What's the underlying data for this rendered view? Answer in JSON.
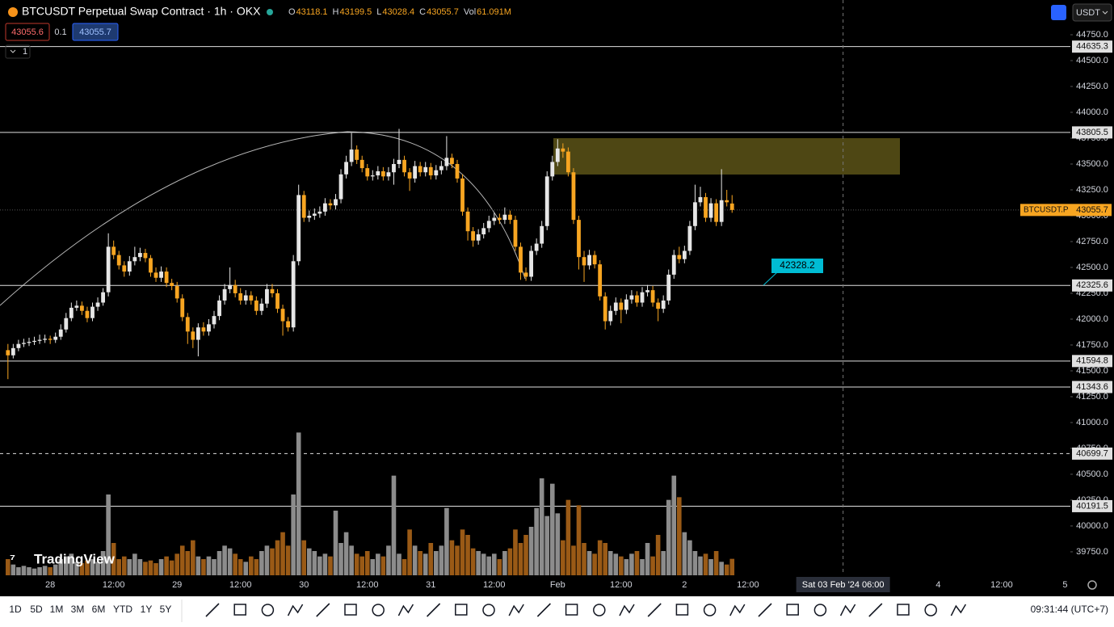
{
  "header": {
    "symbol": "BTCUSDT Perpetual Swap Contract · 1h · OKX",
    "legend_keys": [
      "O",
      "H",
      "L",
      "C",
      "Vol"
    ],
    "volume_text": "61.091M",
    "bid": 43055.6,
    "spread": 0.1,
    "ask": 43055.7,
    "panes": 1,
    "currency": "USDT"
  },
  "watermark": "TradingView",
  "toolbar": {
    "periods": [
      "1D",
      "5D",
      "1M",
      "3M",
      "6M",
      "YTD",
      "1Y",
      "5Y"
    ],
    "clock": "09:31:44 (UTC+7)"
  },
  "chart_data": {
    "type": "candlestick",
    "x": [
      -8,
      -7,
      -6,
      -5,
      -4,
      -3,
      -2,
      -1,
      0,
      1,
      2,
      3,
      4,
      5,
      6,
      7,
      8,
      9,
      10,
      11,
      12,
      13,
      14,
      15,
      16,
      17,
      18,
      19,
      20,
      21,
      22,
      23,
      24,
      25,
      26,
      27,
      28,
      29,
      30,
      31,
      32,
      33,
      34,
      35,
      36,
      37,
      38,
      39,
      40,
      41,
      42,
      43,
      44,
      45,
      46,
      47,
      48,
      49,
      50,
      51,
      52,
      53,
      54,
      55,
      56,
      57,
      58,
      59,
      60,
      61,
      62,
      63,
      64,
      65,
      66,
      67,
      68,
      69,
      70,
      71,
      72,
      73,
      74,
      75,
      76,
      77,
      78,
      79,
      80,
      81,
      82,
      83,
      84,
      85,
      86,
      87,
      88,
      89,
      90,
      91,
      92,
      93,
      94,
      95,
      96,
      97,
      98,
      99,
      100,
      101,
      102,
      103,
      104,
      105,
      106,
      107,
      108,
      109,
      110,
      111,
      112,
      113,
      114,
      115,
      116,
      117,
      118,
      119,
      120,
      121,
      122,
      123,
      124,
      125,
      126,
      127,
      128,
      129
    ],
    "open": [
      41700,
      41650,
      41720,
      41760,
      41770,
      41780,
      41790,
      41800,
      41810,
      41800,
      41830,
      41900,
      42010,
      42110,
      42130,
      42080,
      42010,
      42120,
      42160,
      42260,
      42700,
      42620,
      42520,
      42460,
      42560,
      42600,
      42640,
      42590,
      42450,
      42400,
      42460,
      42350,
      42320,
      42200,
      42020,
      41880,
      41800,
      41920,
      41880,
      41950,
      42030,
      42180,
      42290,
      42330,
      42250,
      42180,
      42230,
      42180,
      42080,
      42150,
      42290,
      42250,
      42100,
      41980,
      41920,
      42560,
      43200,
      42980,
      43000,
      43020,
      43040,
      43120,
      43100,
      43160,
      43400,
      43520,
      43640,
      43540,
      43460,
      43380,
      43390,
      43430,
      43380,
      43420,
      43500,
      43540,
      43420,
      43360,
      43480,
      43420,
      43470,
      43390,
      43440,
      43480,
      43560,
      43500,
      43360,
      43040,
      42850,
      42760,
      42820,
      42880,
      42950,
      42980,
      42960,
      43010,
      42960,
      42700,
      42450,
      42410,
      42660,
      42730,
      42900,
      43380,
      43520,
      43650,
      43620,
      43420,
      42960,
      42600,
      42520,
      42620,
      42530,
      42220,
      41980,
      42080,
      42160,
      42090,
      42190,
      42230,
      42160,
      42260,
      42280,
      42160,
      42100,
      42180,
      42430,
      42620,
      42580,
      42660,
      42900,
      43130,
      43180,
      42980,
      43120,
      42940,
      43150,
      43118.1
    ],
    "high": [
      41760,
      41760,
      41800,
      41810,
      41820,
      41830,
      41850,
      41850,
      41840,
      41870,
      41950,
      42060,
      42160,
      42180,
      42170,
      42120,
      42160,
      42210,
      42300,
      42830,
      42760,
      42660,
      42560,
      42610,
      42700,
      42690,
      42680,
      42620,
      42500,
      42510,
      42500,
      42390,
      42360,
      42240,
      42060,
      41920,
      41960,
      41970,
      42000,
      42080,
      42230,
      42340,
      42500,
      42380,
      42300,
      42280,
      42270,
      42220,
      42200,
      42340,
      42340,
      42290,
      42140,
      42020,
      42620,
      43300,
      43240,
      43050,
      43070,
      43090,
      43170,
      43160,
      43210,
      43450,
      43580,
      43800,
      43680,
      43580,
      43500,
      43440,
      43480,
      43470,
      43470,
      43550,
      43840,
      43580,
      43460,
      43530,
      43520,
      43520,
      43510,
      43490,
      43530,
      43770,
      43600,
      43540,
      43400,
      43080,
      42890,
      42870,
      42930,
      43000,
      43030,
      43020,
      43080,
      43050,
      43000,
      42740,
      42500,
      42710,
      42780,
      42950,
      43430,
      43580,
      43740,
      43700,
      43660,
      43460,
      43000,
      42660,
      42670,
      42660,
      42570,
      42260,
      42130,
      42210,
      42200,
      42240,
      42280,
      42270,
      42310,
      42330,
      42320,
      42200,
      42230,
      42480,
      42670,
      42700,
      42710,
      42950,
      43300,
      43280,
      43220,
      43170,
      43160,
      43450,
      43250,
      43199.5
    ],
    "low": [
      41420,
      41620,
      41690,
      41730,
      41740,
      41750,
      41760,
      41770,
      41760,
      41770,
      41800,
      41870,
      41980,
      42080,
      42040,
      41970,
      41980,
      42080,
      42130,
      42220,
      42580,
      42480,
      42410,
      42420,
      42520,
      42560,
      42550,
      42410,
      42360,
      42360,
      42310,
      42280,
      42160,
      41980,
      41760,
      41720,
      41640,
      41840,
      41840,
      41910,
      41990,
      42140,
      42250,
      42210,
      42140,
      42140,
      42140,
      42040,
      42040,
      42110,
      42210,
      42060,
      41840,
      41880,
      41880,
      42520,
      42940,
      42940,
      42960,
      42980,
      43000,
      43060,
      43060,
      43120,
      43360,
      43480,
      43500,
      43420,
      43340,
      43340,
      43350,
      43340,
      43340,
      43300,
      43460,
      43380,
      43240,
      43320,
      43380,
      43380,
      43350,
      43350,
      43400,
      43440,
      43460,
      43320,
      43000,
      42760,
      42700,
      42720,
      42780,
      42840,
      42910,
      42920,
      42920,
      42920,
      42660,
      42380,
      42370,
      42370,
      42620,
      42690,
      42860,
      43340,
      43480,
      43560,
      43380,
      42920,
      42480,
      42360,
      42480,
      42490,
      42180,
      41900,
      41940,
      42040,
      41960,
      42050,
      42150,
      42120,
      42120,
      42220,
      42120,
      41980,
      42060,
      42140,
      42390,
      42540,
      42540,
      42620,
      42860,
      43090,
      42940,
      42940,
      42900,
      42900,
      43090,
      43028.4
    ],
    "close": [
      41650,
      41720,
      41760,
      41770,
      41780,
      41790,
      41800,
      41810,
      41800,
      41830,
      41900,
      42010,
      42110,
      42130,
      42080,
      42010,
      42120,
      42160,
      42260,
      42700,
      42620,
      42520,
      42460,
      42560,
      42600,
      42640,
      42590,
      42450,
      42400,
      42460,
      42350,
      42320,
      42200,
      42020,
      41880,
      41800,
      41920,
      41880,
      41950,
      42030,
      42180,
      42290,
      42330,
      42250,
      42180,
      42230,
      42180,
      42080,
      42150,
      42290,
      42250,
      42100,
      41980,
      41920,
      42560,
      43200,
      42980,
      43000,
      43020,
      43040,
      43120,
      43100,
      43160,
      43400,
      43520,
      43640,
      43540,
      43460,
      43380,
      43390,
      43430,
      43380,
      43420,
      43500,
      43540,
      43420,
      43360,
      43480,
      43420,
      43470,
      43390,
      43440,
      43480,
      43560,
      43500,
      43360,
      43040,
      42850,
      42760,
      42820,
      42880,
      42950,
      42980,
      42960,
      43010,
      42960,
      42700,
      42450,
      42410,
      42660,
      42730,
      42900,
      43380,
      43520,
      43650,
      43620,
      43420,
      42960,
      42600,
      42520,
      42620,
      42530,
      42220,
      41980,
      42080,
      42160,
      42090,
      42190,
      42230,
      42160,
      42260,
      42280,
      42160,
      42100,
      42180,
      42430,
      42620,
      42580,
      42660,
      42900,
      43130,
      43180,
      42980,
      43120,
      42940,
      43150,
      43130,
      43055.7
    ],
    "volume": [
      60,
      40,
      30,
      35,
      30,
      25,
      30,
      35,
      30,
      40,
      60,
      70,
      80,
      50,
      45,
      55,
      60,
      50,
      90,
      300,
      120,
      60,
      70,
      60,
      80,
      60,
      50,
      55,
      45,
      60,
      70,
      55,
      80,
      110,
      90,
      130,
      70,
      60,
      70,
      60,
      90,
      110,
      100,
      80,
      60,
      50,
      70,
      60,
      90,
      110,
      100,
      130,
      160,
      110,
      300,
      530,
      130,
      100,
      90,
      70,
      80,
      70,
      240,
      120,
      160,
      110,
      80,
      70,
      90,
      60,
      80,
      70,
      110,
      370,
      80,
      60,
      170,
      110,
      90,
      80,
      120,
      90,
      110,
      250,
      130,
      110,
      170,
      150,
      100,
      90,
      80,
      70,
      80,
      60,
      90,
      100,
      170,
      120,
      150,
      180,
      250,
      360,
      220,
      340,
      230,
      130,
      280,
      110,
      260,
      120,
      90,
      80,
      130,
      120,
      90,
      80,
      70,
      60,
      80,
      90,
      60,
      120,
      70,
      150,
      90,
      280,
      370,
      290,
      160,
      130,
      90,
      70,
      80,
      60,
      90,
      50,
      40,
      61.091
    ],
    "xlim": [
      -9.5,
      193
    ],
    "ylim": [
      39523,
      45086
    ],
    "vlim": [
      0,
      600
    ],
    "xticks": [
      {
        "value": 0,
        "label": "28"
      },
      {
        "value": 12,
        "label": "12:00"
      },
      {
        "value": 24,
        "label": "29"
      },
      {
        "value": 36,
        "label": "12:00"
      },
      {
        "value": 48,
        "label": "30"
      },
      {
        "value": 60,
        "label": "12:00"
      },
      {
        "value": 72,
        "label": "31"
      },
      {
        "value": 84,
        "label": "12:00"
      },
      {
        "value": 96,
        "label": "Feb"
      },
      {
        "value": 108,
        "label": "12:00"
      },
      {
        "value": 120,
        "label": "2"
      },
      {
        "value": 132,
        "label": "12:00"
      },
      {
        "value": 168,
        "label": "4"
      },
      {
        "value": 180,
        "label": "12:00"
      },
      {
        "value": 192,
        "label": "5"
      }
    ],
    "yticks": [
      {
        "value": 44750,
        "label": "44750.0"
      },
      {
        "value": 44500,
        "label": "44500.0"
      },
      {
        "value": 44250,
        "label": "44250.0"
      },
      {
        "value": 44000,
        "label": "44000.0"
      },
      {
        "value": 43750,
        "label": "43750.0"
      },
      {
        "value": 43500,
        "label": "43500.0"
      },
      {
        "value": 43250,
        "label": "43250.0"
      },
      {
        "value": 43000,
        "label": "43000.0"
      },
      {
        "value": 42750,
        "label": "42750.0"
      },
      {
        "value": 42500,
        "label": "42500.0"
      },
      {
        "value": 42250,
        "label": "42250.0"
      },
      {
        "value": 42000,
        "label": "42000.0"
      },
      {
        "value": 41750,
        "label": "41750.0"
      },
      {
        "value": 41500,
        "label": "41500.0"
      },
      {
        "value": 41250,
        "label": "41250.0"
      },
      {
        "value": 41000,
        "label": "41000.0"
      },
      {
        "value": 40750,
        "label": "40750.0"
      },
      {
        "value": 40500,
        "label": "40500.0"
      },
      {
        "value": 40250,
        "label": "40250.0"
      },
      {
        "value": 40000,
        "label": "40000.0"
      },
      {
        "value": 39750,
        "label": "39750.0"
      }
    ],
    "hlines": [
      {
        "value": 44635.3,
        "dashed": false
      },
      {
        "value": 43805.5,
        "dashed": false
      },
      {
        "value": 42325.6,
        "dashed": false
      },
      {
        "value": 41594.8,
        "dashed": false
      },
      {
        "value": 41343.6,
        "dashed": false
      },
      {
        "value": 40699.7,
        "dashed": true
      },
      {
        "value": 40191.5,
        "dashed": false
      }
    ],
    "up_color": "#e6e6e6",
    "down_color": "#f7a521",
    "volume_up_color": "#8c8c8c",
    "volume_down_color": "#9a5a16",
    "price_tag": "BTCUSDT.P",
    "annotation": 42328.2,
    "crosshair": {
      "value": 150,
      "label": "Sat 03 Feb '24  06:00"
    }
  }
}
